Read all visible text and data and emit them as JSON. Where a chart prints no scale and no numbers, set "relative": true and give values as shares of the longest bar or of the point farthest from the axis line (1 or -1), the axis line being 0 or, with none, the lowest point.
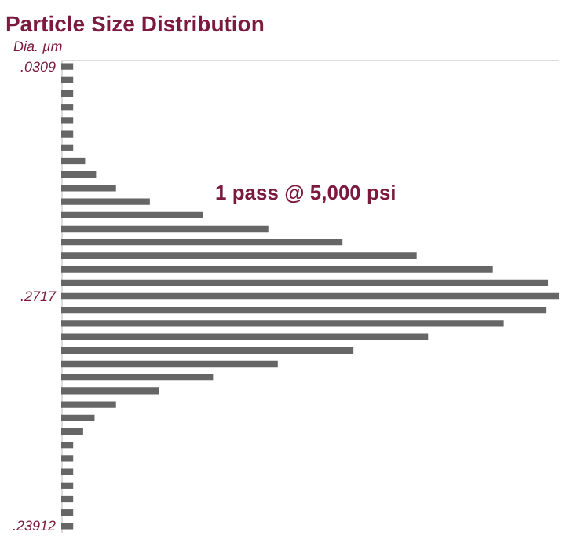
{
  "chart_data": {
    "type": "bar",
    "orientation": "horizontal",
    "relative": true,
    "title": "Particle Size Distribution",
    "ylabel": "Dia. µm",
    "annotations": [
      "1 pass @ 5,000 psi"
    ],
    "categories": [
      ".0309",
      null,
      null,
      null,
      null,
      null,
      null,
      null,
      null,
      null,
      null,
      null,
      null,
      null,
      null,
      null,
      null,
      ".2717",
      null,
      null,
      null,
      null,
      null,
      null,
      null,
      null,
      null,
      null,
      null,
      null,
      null,
      null,
      null,
      null,
      ".23912"
    ],
    "series": [
      {
        "color": "#666666",
        "values": [
          0.024,
          0.024,
          0.024,
          0.024,
          0.024,
          0.024,
          0.024,
          0.048,
          0.07,
          0.11,
          0.178,
          0.285,
          0.416,
          0.565,
          0.714,
          0.867,
          0.978,
          1.0,
          0.975,
          0.889,
          0.737,
          0.587,
          0.435,
          0.305,
          0.197,
          0.11,
          0.067,
          0.044,
          0.024,
          0.024,
          0.024,
          0.024,
          0.024,
          0.024,
          0.024
        ]
      }
    ],
    "grid": false,
    "legend": false
  }
}
